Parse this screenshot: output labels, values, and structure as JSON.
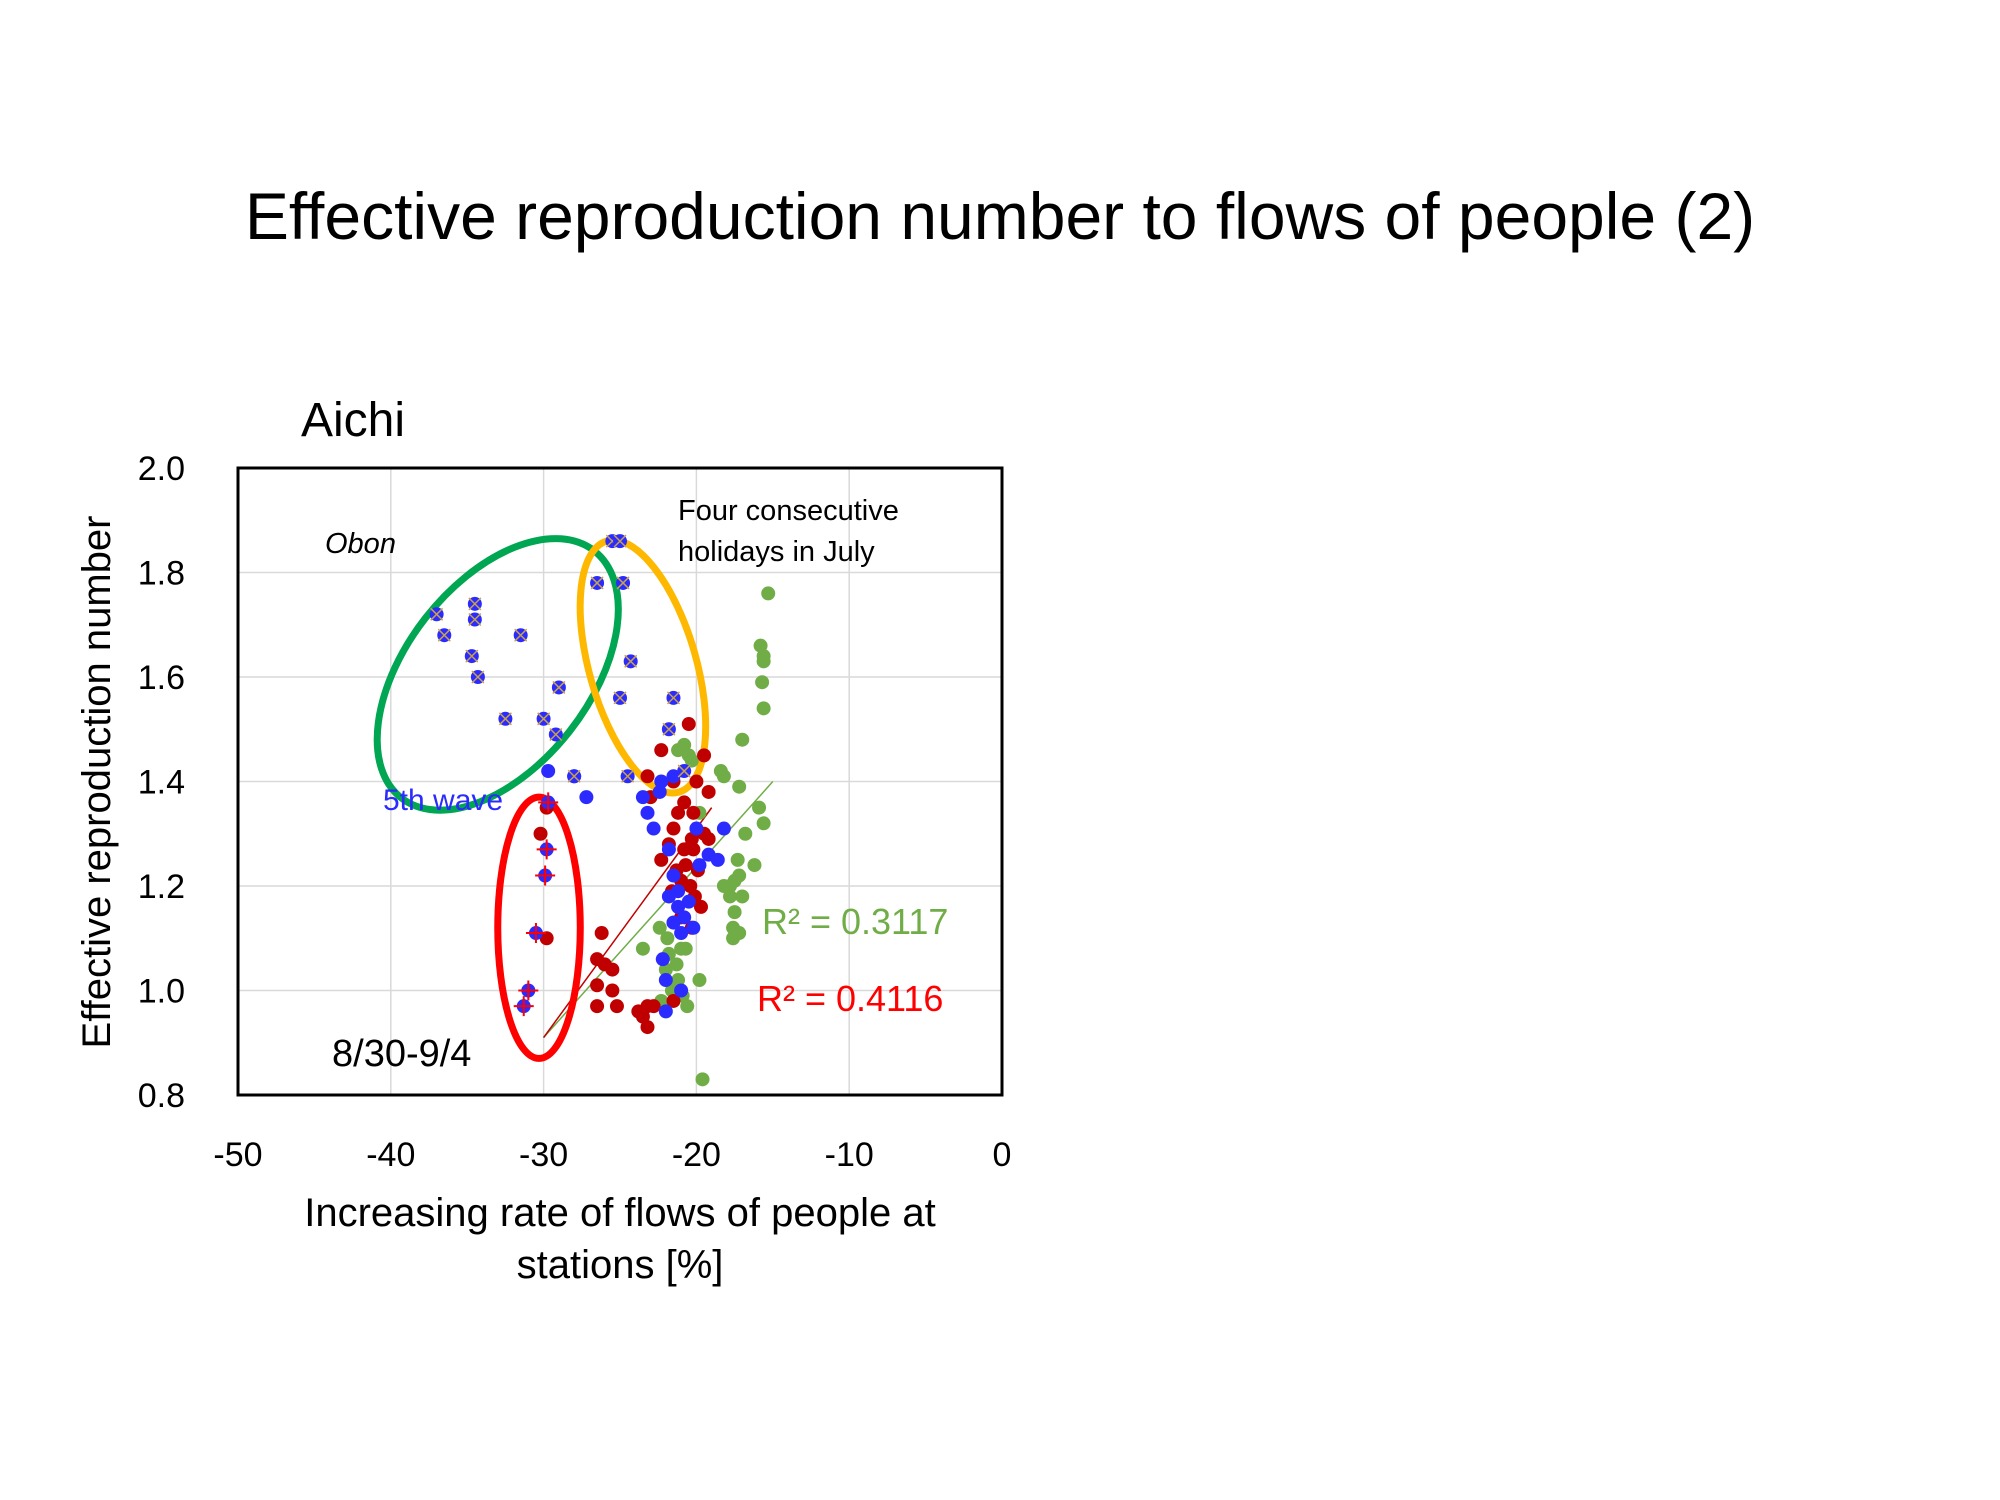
{
  "slide": {
    "title": "Effective reproduction number to flows of people (2)"
  },
  "chart_data": {
    "type": "scatter",
    "title": "Aichi",
    "xlabel": "Increasing rate of flows of people at stations [%]",
    "xlabel_lines": [
      "Increasing rate of flows of people at",
      "stations [%]"
    ],
    "ylabel": "Effective reproduction number",
    "xlim": [
      -50,
      0
    ],
    "ylim": [
      0.8,
      2.0
    ],
    "xticks": [
      -50,
      -40,
      -30,
      -20,
      -10,
      0
    ],
    "yticks": [
      0.8,
      1.0,
      1.2,
      1.4,
      1.6,
      1.8,
      2.0
    ],
    "xtick_labels": [
      "-50",
      "-40",
      "-30",
      "-20",
      "-10",
      "0"
    ],
    "ytick_labels": [
      "0.8",
      "1.0",
      "1.2",
      "1.4",
      "1.6",
      "1.8",
      "2.0"
    ],
    "grid": "vertical and horizontal",
    "series": [
      {
        "color": "#70AD47",
        "points": [
          [
            -15.3,
            1.76
          ],
          [
            -15.8,
            1.66
          ],
          [
            -15.6,
            1.64
          ],
          [
            -15.6,
            1.63
          ],
          [
            -15.7,
            1.59
          ],
          [
            -15.6,
            1.54
          ],
          [
            -17.0,
            1.48
          ],
          [
            -18.4,
            1.42
          ],
          [
            -18.2,
            1.41
          ],
          [
            -17.2,
            1.39
          ],
          [
            -15.9,
            1.35
          ],
          [
            -15.6,
            1.32
          ],
          [
            -16.8,
            1.3
          ],
          [
            -17.3,
            1.25
          ],
          [
            -16.2,
            1.24
          ],
          [
            -17.2,
            1.22
          ],
          [
            -17.5,
            1.21
          ],
          [
            -17.8,
            1.2
          ],
          [
            -18.2,
            1.2
          ],
          [
            -17.0,
            1.18
          ],
          [
            -17.8,
            1.18
          ],
          [
            -17.5,
            1.15
          ],
          [
            -17.6,
            1.12
          ],
          [
            -17.2,
            1.11
          ],
          [
            -17.6,
            1.1
          ],
          [
            -20.8,
            1.47
          ],
          [
            -20.5,
            1.45
          ],
          [
            -21.2,
            1.46
          ],
          [
            -20.3,
            1.44
          ],
          [
            -19.8,
            1.34
          ],
          [
            -21.5,
            1.13
          ],
          [
            -21.0,
            1.08
          ],
          [
            -20.7,
            1.08
          ],
          [
            -21.8,
            1.07
          ],
          [
            -21.3,
            1.05
          ],
          [
            -22.0,
            1.04
          ],
          [
            -21.2,
            1.02
          ],
          [
            -21.6,
            1.0
          ],
          [
            -20.9,
            0.99
          ],
          [
            -22.3,
            0.98
          ],
          [
            -20.6,
            0.97
          ],
          [
            -19.8,
            1.02
          ],
          [
            -19.6,
            0.83
          ],
          [
            -23.5,
            1.08
          ],
          [
            -21.9,
            1.1
          ],
          [
            -22.4,
            1.12
          ]
        ],
        "trendline": [
          [
            -30.0,
            0.91
          ],
          [
            -15.0,
            1.4
          ]
        ],
        "r2_label": "R² = 0.3117"
      },
      {
        "color": "#C00000",
        "points": [
          [
            -20.5,
            1.51
          ],
          [
            -19.5,
            1.45
          ],
          [
            -22.3,
            1.46
          ],
          [
            -23.2,
            1.41
          ],
          [
            -21.5,
            1.4
          ],
          [
            -20.0,
            1.4
          ],
          [
            -19.2,
            1.38
          ],
          [
            -23.0,
            1.37
          ],
          [
            -20.8,
            1.36
          ],
          [
            -21.2,
            1.34
          ],
          [
            -20.2,
            1.34
          ],
          [
            -21.5,
            1.31
          ],
          [
            -19.5,
            1.3
          ],
          [
            -20.3,
            1.29
          ],
          [
            -21.8,
            1.28
          ],
          [
            -20.8,
            1.27
          ],
          [
            -19.2,
            1.29
          ],
          [
            -20.2,
            1.27
          ],
          [
            -22.3,
            1.25
          ],
          [
            -20.7,
            1.24
          ],
          [
            -21.3,
            1.23
          ],
          [
            -19.9,
            1.23
          ],
          [
            -21.0,
            1.21
          ],
          [
            -20.4,
            1.2
          ],
          [
            -21.6,
            1.19
          ],
          [
            -20.1,
            1.18
          ],
          [
            -19.7,
            1.16
          ],
          [
            -21.0,
            1.14
          ],
          [
            -20.3,
            1.12
          ],
          [
            -29.8,
            1.1
          ],
          [
            -26.2,
            1.11
          ],
          [
            -26.5,
            1.06
          ],
          [
            -26.0,
            1.05
          ],
          [
            -25.5,
            1.04
          ],
          [
            -26.5,
            1.01
          ],
          [
            -25.5,
            1.0
          ],
          [
            -26.5,
            0.97
          ],
          [
            -25.2,
            0.97
          ],
          [
            -23.8,
            0.96
          ],
          [
            -23.5,
            0.95
          ],
          [
            -23.2,
            0.93
          ],
          [
            -22.8,
            0.97
          ],
          [
            -21.5,
            0.98
          ],
          [
            -23.2,
            0.97
          ],
          [
            -29.8,
            1.35
          ],
          [
            -30.2,
            1.3
          ]
        ],
        "trendline": [
          [
            -30.0,
            0.91
          ],
          [
            -19.0,
            1.35
          ]
        ],
        "r2_label": "R² = 0.4116"
      },
      {
        "color": "#2B2BFF",
        "points": [
          [
            -22.3,
            1.4
          ],
          [
            -21.5,
            1.41
          ],
          [
            -22.4,
            1.38
          ],
          [
            -23.5,
            1.37
          ],
          [
            -23.2,
            1.34
          ],
          [
            -22.8,
            1.31
          ],
          [
            -21.8,
            1.27
          ],
          [
            -20.0,
            1.31
          ],
          [
            -19.2,
            1.26
          ],
          [
            -18.6,
            1.25
          ],
          [
            -18.2,
            1.31
          ],
          [
            -19.8,
            1.24
          ],
          [
            -21.5,
            1.22
          ],
          [
            -21.2,
            1.19
          ],
          [
            -21.8,
            1.18
          ],
          [
            -20.5,
            1.17
          ],
          [
            -21.2,
            1.16
          ],
          [
            -20.8,
            1.14
          ],
          [
            -21.5,
            1.13
          ],
          [
            -20.2,
            1.12
          ],
          [
            -21.0,
            1.11
          ],
          [
            -22.2,
            1.06
          ],
          [
            -22.0,
            1.02
          ],
          [
            -21.0,
            1.0
          ],
          [
            -22.0,
            0.96
          ],
          [
            -27.2,
            1.37
          ],
          [
            -29.7,
            1.42
          ],
          [
            -28.0,
            1.41
          ]
        ],
        "trendline": null
      },
      {
        "color": "#2B2BFF",
        "marker": "x-outlined",
        "points": [
          [
            -37.0,
            1.72
          ],
          [
            -36.5,
            1.68
          ],
          [
            -34.5,
            1.74
          ],
          [
            -34.5,
            1.71
          ],
          [
            -34.7,
            1.64
          ],
          [
            -34.3,
            1.6
          ],
          [
            -31.5,
            1.68
          ],
          [
            -32.5,
            1.52
          ],
          [
            -30.0,
            1.52
          ],
          [
            -29.0,
            1.58
          ],
          [
            -29.2,
            1.49
          ],
          [
            -28.0,
            1.41
          ],
          [
            -25.5,
            1.86
          ],
          [
            -25.0,
            1.86
          ],
          [
            -26.5,
            1.78
          ],
          [
            -24.8,
            1.78
          ],
          [
            -24.3,
            1.63
          ],
          [
            -25.0,
            1.56
          ],
          [
            -24.5,
            1.41
          ],
          [
            -21.5,
            1.56
          ],
          [
            -21.8,
            1.5
          ],
          [
            -20.8,
            1.42
          ]
        ],
        "trendline": null
      },
      {
        "color": "#2B2BFF",
        "marker": "plus-red",
        "points": [
          [
            -29.7,
            1.36
          ],
          [
            -29.8,
            1.27
          ],
          [
            -29.9,
            1.22
          ],
          [
            -30.5,
            1.11
          ],
          [
            -31.0,
            1.0
          ],
          [
            -31.3,
            0.97
          ]
        ],
        "trendline": null
      }
    ],
    "annotations": {
      "obon": "Obon",
      "four_holidays_line1": "Four consecutive",
      "four_holidays_line2": "holidays in July",
      "fifth_wave": "5th wave",
      "date_range": "8/30-9/4"
    },
    "ellipses": [
      {
        "name": "obon",
        "color": "#00A651",
        "cx": -33.0,
        "cy": 1.605,
        "rx_pct": 6.0,
        "ry": 0.3,
        "rotate": 38
      },
      {
        "name": "four-holidays",
        "color": "#FFB800",
        "cx": -23.5,
        "cy": 1.62,
        "rx_pct": 3.5,
        "ry": 0.25,
        "rotate": -16
      },
      {
        "name": "8-30-9-4",
        "color": "#FF0000",
        "cx": -30.3,
        "cy": 1.12,
        "rx_pct": 2.7,
        "ry": 0.25,
        "rotate": 0
      }
    ]
  }
}
